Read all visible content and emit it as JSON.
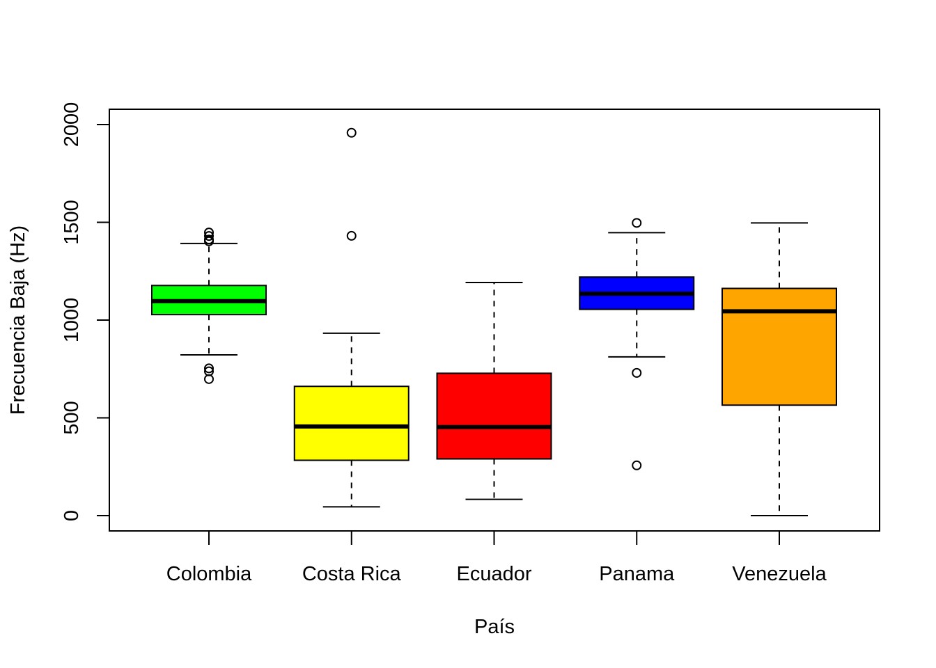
{
  "chart_data": {
    "type": "boxplot",
    "title": "",
    "xlabel": "País",
    "ylabel": "Frecuencia Baja (Hz)",
    "ylim": [
      -80,
      2080
    ],
    "yticks": [
      0,
      500,
      1000,
      1500,
      2000
    ],
    "ytick_labels": [
      "0",
      "500",
      "1000",
      "1500",
      "2000"
    ],
    "grid": false,
    "legend": "none",
    "categories": [
      "Colombia",
      "Costa Rica",
      "Ecuador",
      "Panama",
      "Venezuela"
    ],
    "boxes": [
      {
        "category": "Colombia",
        "color": "#00ff00",
        "whisker_low": 822,
        "q1": 1028,
        "median": 1097,
        "q3": 1177,
        "whisker_high": 1392,
        "outliers": [
          1448,
          1430,
          1412,
          1403,
          753,
          738,
          698
        ]
      },
      {
        "category": "Costa Rica",
        "color": "#ffff00",
        "whisker_low": 45,
        "q1": 283,
        "median": 456,
        "q3": 661,
        "whisker_high": 933,
        "outliers": [
          1958,
          1431
        ]
      },
      {
        "category": "Ecuador",
        "color": "#ff0000",
        "whisker_low": 83,
        "q1": 290,
        "median": 453,
        "q3": 728,
        "whisker_high": 1192,
        "outliers": []
      },
      {
        "category": "Panama",
        "color": "#0000ff",
        "whisker_low": 812,
        "q1": 1055,
        "median": 1135,
        "q3": 1220,
        "whisker_high": 1447,
        "outliers": [
          1497,
          730,
          257
        ]
      },
      {
        "category": "Venezuela",
        "color": "#ffa500",
        "whisker_low": 0,
        "q1": 565,
        "median": 1045,
        "q3": 1162,
        "whisker_high": 1497,
        "outliers": []
      }
    ]
  }
}
